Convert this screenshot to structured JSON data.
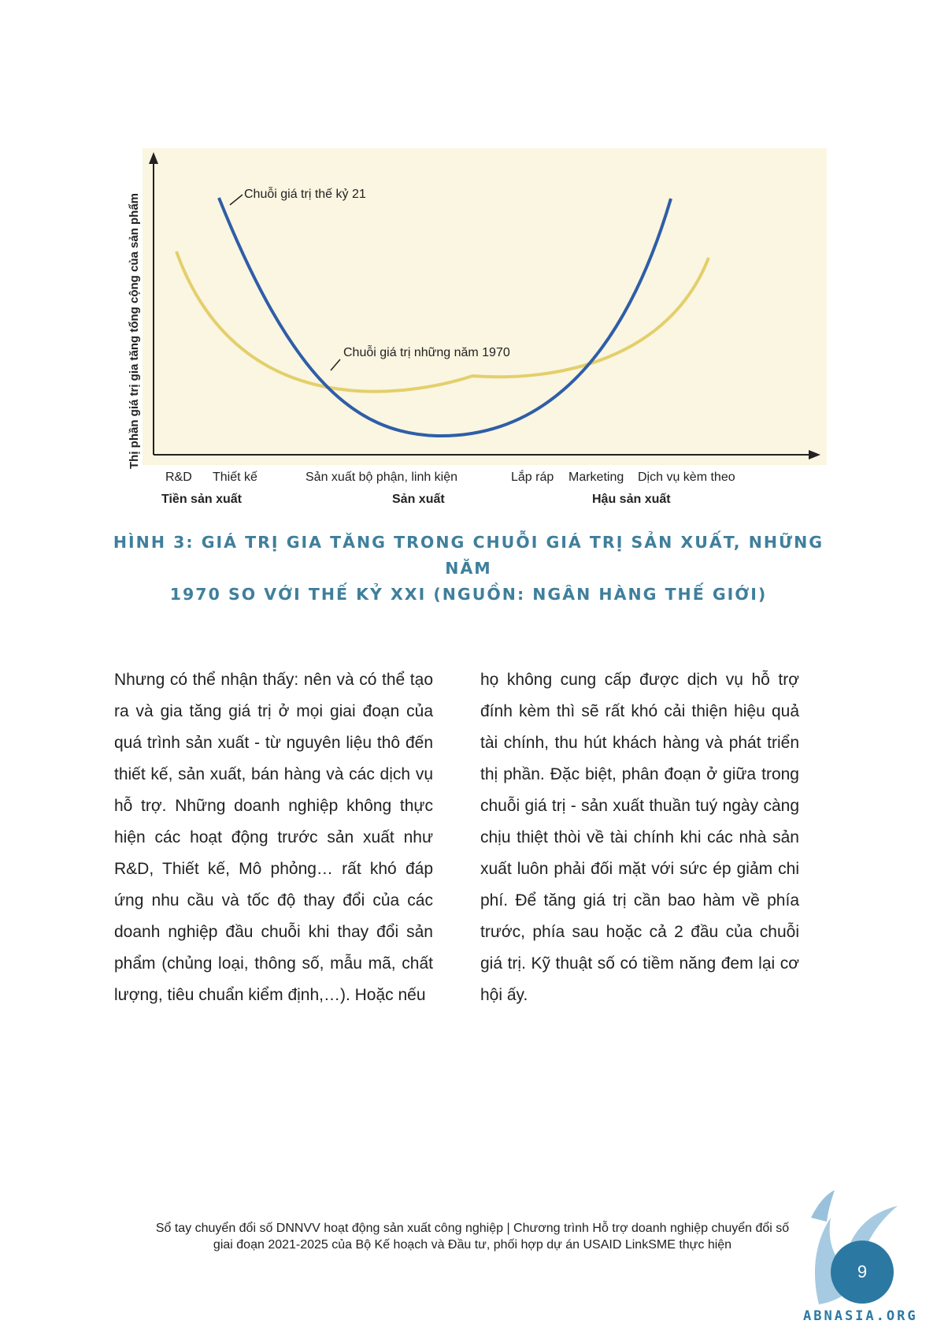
{
  "figure": {
    "ylabel": "Thị phần giá trị gia tăng tổng cộng của sản phẩm",
    "curve_labels": {
      "c21": "Chuỗi giá trị thế kỷ 21",
      "c1970": "Chuỗi giá trị những năm 1970"
    },
    "ticks": [
      "R&D",
      "Thiết kế",
      "Sản xuất bộ phận, linh kiện",
      "Lắp ráp",
      "Marketing",
      "Dịch vụ kèm theo"
    ],
    "groups": [
      "Tiền sản xuất",
      "Sản xuất",
      "Hậu sản xuất"
    ],
    "colors": {
      "background": "#fbf6e1",
      "c21": "#2f5ea8",
      "c1970": "#e3cf6c"
    }
  },
  "caption": {
    "line1": "HÌNH 3: GIÁ TRỊ GIA TĂNG TRONG CHUỖI GIÁ TRỊ SẢN XUẤT, NHỮNG NĂM",
    "line2": "1970 SO VỚI THẾ KỶ XXI (NGUỒN: NGÂN HÀNG THẾ GIỚI)"
  },
  "body": {
    "left": "Nhưng có thể nhận thấy: nên và có thể tạo ra và gia tăng giá trị ở mọi giai đoạn của quá trình sản xuất - từ nguyên liệu thô đến thiết kế, sản xuất, bán hàng và các dịch vụ hỗ trợ. Những doanh nghiệp không thực hiện các hoạt động trước sản xuất như R&D, Thiết kế, Mô phỏng… rất khó đáp ứng nhu cầu và tốc độ thay đổi của các doanh nghiệp đầu chuỗi khi thay đổi sản phẩm (chủng loại, thông số, mẫu mã, chất lượng, tiêu chuẩn kiểm định,…). Hoặc nếu",
    "right": "họ không cung cấp được dịch vụ hỗ trợ đính kèm thì sẽ rất khó cải thiện hiệu quả tài chính, thu hút khách hàng và phát triển thị phần. Đặc biệt, phân đoạn ở giữa trong chuỗi giá trị - sản xuất thuần tuý ngày càng chịu thiệt thòi về tài chính khi các nhà sản xuất luôn phải đối mặt với sức ép giảm chi phí. Để tăng giá trị cần bao hàm về phía trước, phía sau hoặc cả 2 đầu của chuỗi giá trị. Kỹ thuật số có tiềm năng đem lại cơ hội ấy."
  },
  "footer": {
    "line1": "Sổ tay chuyển đổi số DNNVV hoạt động sản xuất công nghiệp | Chương trình Hỗ trợ doanh nghiệp chuyển đổi số",
    "line2": "giai đoạn 2021-2025 của Bộ Kế hoạch và Đầu tư, phối hợp dự án USAID LinkSME thực hiện",
    "page_number": "9",
    "watermark": "ABNASIA.ORG"
  }
}
